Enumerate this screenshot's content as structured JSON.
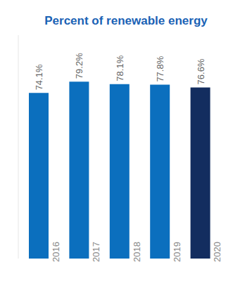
{
  "chart_data": {
    "type": "bar",
    "title": "Percent of renewable energy",
    "categories": [
      "2016",
      "2017",
      "2018",
      "2019",
      "2020"
    ],
    "values": [
      74.1,
      79.2,
      78.1,
      77.8,
      76.6
    ],
    "value_labels": [
      "74.1%",
      "79.2%",
      "78.1%",
      "77.8%",
      "76.6%"
    ],
    "data_labels": true,
    "colors": [
      "#0b6fbe",
      "#0b6fbe",
      "#0b6fbe",
      "#0b6fbe",
      "#132d5f"
    ],
    "ylim": [
      0,
      100
    ],
    "tick_labels": "x",
    "grid": false
  }
}
